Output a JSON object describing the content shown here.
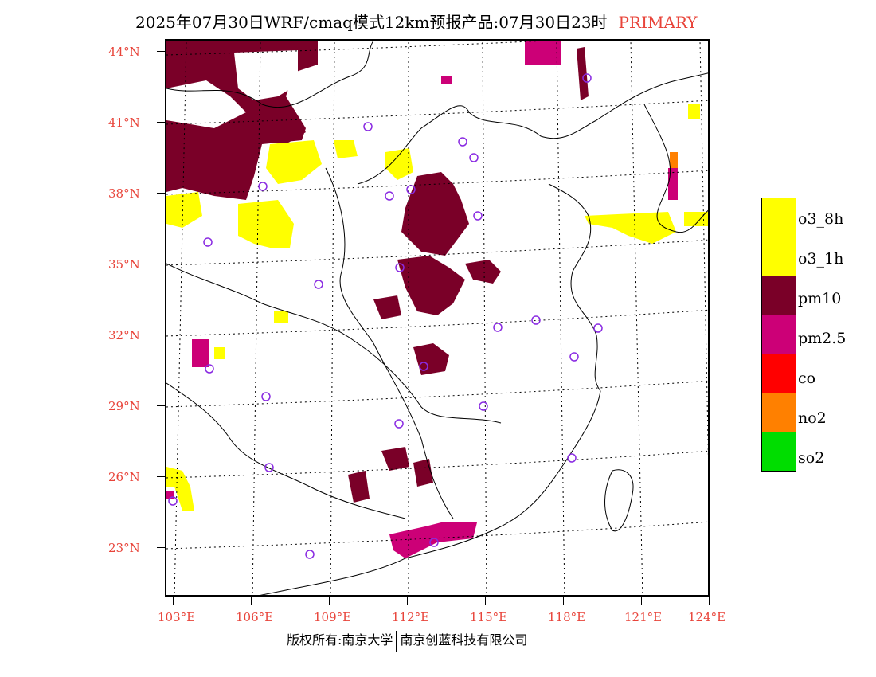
{
  "title": {
    "text": "2025年07月30日WRF/cmaq模式12km预报产品:07月30日23时",
    "tag": "PRIMARY"
  },
  "axes": {
    "lat_labels": [
      "44°N",
      "41°N",
      "38°N",
      "35°N",
      "32°N",
      "29°N",
      "26°N",
      "23°N"
    ],
    "lon_labels": [
      "103°E",
      "106°E",
      "109°E",
      "112°E",
      "115°E",
      "118°E",
      "121°E",
      "124°E"
    ]
  },
  "legend": {
    "items": [
      {
        "label": "o3_8h",
        "color": "#ffff00"
      },
      {
        "label": "o3_1h",
        "color": "#ffff00"
      },
      {
        "label": "pm10",
        "color": "#7a0028"
      },
      {
        "label": "pm2.5",
        "color": "#cc0077"
      },
      {
        "label": "co",
        "color": "#ff0000"
      },
      {
        "label": "no2",
        "color": "#ff8000"
      },
      {
        "label": "so2",
        "color": "#00dd00"
      }
    ]
  },
  "footer": {
    "left": "版权所有:南京大学",
    "right": "南京创蓝科技有限公司"
  },
  "colors": {
    "accent_red": "#e8443a",
    "pm10": "#7a0028",
    "pm25": "#cc0077",
    "o3": "#ffff00",
    "station_marker": "#8a2be2"
  }
}
